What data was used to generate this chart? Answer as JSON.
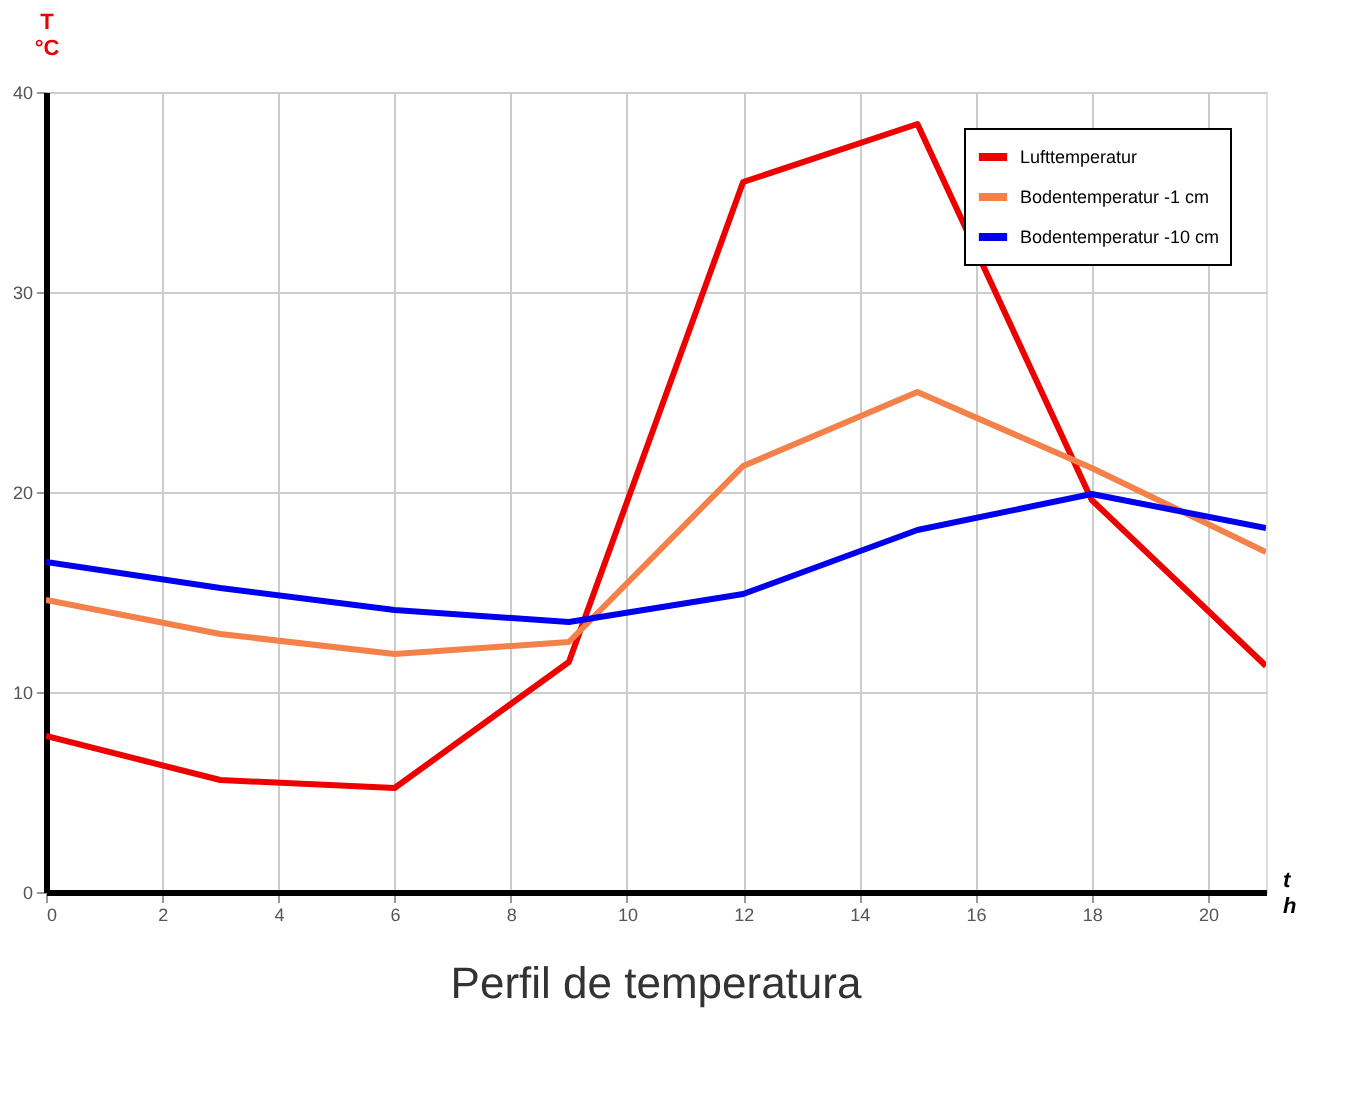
{
  "chart_data": {
    "type": "line",
    "title": "Perfil de temperatura",
    "xlabel": "t\nh",
    "ylabel": "T\n°C",
    "x": [
      0,
      3,
      6,
      9,
      12,
      15,
      18,
      21
    ],
    "series": [
      {
        "name": "Lufttemperatur",
        "color": "#ee0000",
        "values": [
          7.8,
          5.6,
          5.2,
          11.5,
          35.5,
          38.4,
          19.6,
          11.3
        ]
      },
      {
        "name": "Bodentemperatur -1 cm",
        "color": "#f4804a",
        "values": [
          14.6,
          12.9,
          11.9,
          12.5,
          21.3,
          25.0,
          21.2,
          17.0
        ]
      },
      {
        "name": "Bodentemperatur -10 cm",
        "color": "#0000ee",
        "values": [
          16.5,
          15.2,
          14.1,
          13.5,
          14.9,
          18.1,
          19.9,
          18.2
        ]
      }
    ],
    "xlim": [
      0,
      21
    ],
    "xticks": [
      0,
      2,
      4,
      6,
      8,
      10,
      12,
      14,
      16,
      18,
      20
    ],
    "ylim": [
      0,
      40
    ],
    "yticks": [
      0,
      10,
      20,
      30,
      40
    ],
    "grid": true,
    "legend": "top right",
    "marker": "none",
    "line_style": "solid"
  }
}
